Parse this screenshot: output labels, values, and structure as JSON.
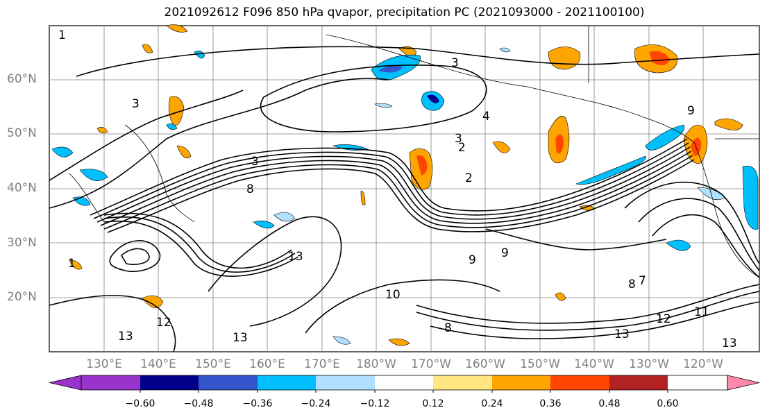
{
  "title": "2021092612 F096 850 hPa qvapor, precipitation PC (2021093000 - 2021100100)",
  "lat_labels": [
    "60°N",
    "50°N",
    "40°N",
    "30°N",
    "20°N"
  ],
  "lon_labels": [
    "130°E",
    "140°E",
    "150°E",
    "160°E",
    "170°E",
    "180°W",
    "170°W",
    "160°W",
    "150°W",
    "140°W",
    "130°W",
    "120°W"
  ],
  "contour_labels": [
    "1",
    "3",
    "3",
    "4",
    "3",
    "2",
    "2",
    "3",
    "8",
    "13",
    "13",
    "9",
    "9",
    "8",
    "10",
    "12",
    "13",
    "13",
    "12",
    "11",
    "13",
    "7",
    "8",
    "9",
    "1"
  ],
  "colorbar": {
    "ticks": [
      "−0.60",
      "−0.48",
      "−0.36",
      "−0.24",
      "−0.12",
      "0.12",
      "0.24",
      "0.36",
      "0.48",
      "0.60"
    ],
    "colors": [
      "#9933cc",
      "#00008b",
      "#3355cc",
      "#00bfff",
      "#b0e0ff",
      "#ffffff",
      "#ffe680",
      "#ffa500",
      "#ff4500",
      "#b22222",
      "#ff88aa"
    ]
  },
  "style": {
    "land_fill": "#ffffff",
    "contour_color": "#000000",
    "grid_color": "#808080"
  }
}
